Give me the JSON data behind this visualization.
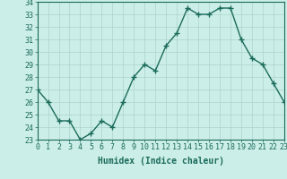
{
  "x": [
    0,
    1,
    2,
    3,
    4,
    5,
    6,
    7,
    8,
    9,
    10,
    11,
    12,
    13,
    14,
    15,
    16,
    17,
    18,
    19,
    20,
    21,
    22,
    23
  ],
  "y": [
    27,
    26,
    24.5,
    24.5,
    23,
    23.5,
    24.5,
    24,
    26,
    28,
    29,
    28.5,
    30.5,
    31.5,
    33.5,
    33,
    33,
    33.5,
    33.5,
    31,
    29.5,
    29,
    27.5,
    26
  ],
  "xlabel": "Humidex (Indice chaleur)",
  "ylim": [
    23,
    34
  ],
  "xlim": [
    0,
    23
  ],
  "yticks": [
    23,
    24,
    25,
    26,
    27,
    28,
    29,
    30,
    31,
    32,
    33,
    34
  ],
  "xticks": [
    0,
    1,
    2,
    3,
    4,
    5,
    6,
    7,
    8,
    9,
    10,
    11,
    12,
    13,
    14,
    15,
    16,
    17,
    18,
    19,
    20,
    21,
    22,
    23
  ],
  "line_color": "#1a6b5a",
  "marker_color": "#1a6b5a",
  "bg_color": "#cceee8",
  "grid_color": "#aad4cc",
  "axes_color": "#1a6b5a",
  "label_color": "#1a6b5a",
  "tick_color": "#1a6b5a",
  "marker": "+",
  "linewidth": 1.0,
  "markersize": 4,
  "xlabel_fontsize": 7,
  "tick_fontsize": 6
}
